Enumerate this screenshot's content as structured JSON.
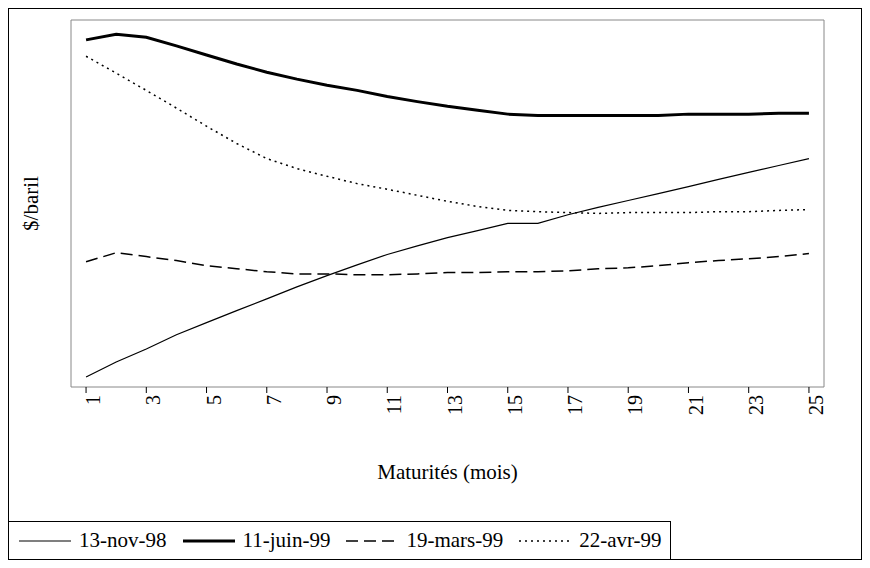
{
  "chart_data": {
    "type": "line",
    "x_label": "Maturités (mois)",
    "y_label": "$/baril",
    "x": [
      1,
      2,
      3,
      4,
      5,
      6,
      7,
      8,
      9,
      10,
      11,
      12,
      13,
      14,
      15,
      16,
      17,
      18,
      19,
      20,
      21,
      22,
      23,
      24,
      25
    ],
    "xlim": [
      0.5,
      25.5
    ],
    "xticks": [
      1,
      3,
      5,
      7,
      9,
      11,
      13,
      15,
      17,
      19,
      21,
      23,
      25
    ],
    "ylim": [
      11,
      19.5
    ],
    "tick_labels": "x",
    "grid": false,
    "legend": "bottom",
    "series": [
      {
        "name": "13-nov-98",
        "color": "#000000",
        "line_style": "solid",
        "values": [
          11.23,
          11.58,
          11.88,
          12.21,
          12.49,
          12.77,
          13.04,
          13.32,
          13.58,
          13.83,
          14.07,
          14.27,
          14.46,
          14.62,
          14.79,
          14.79,
          14.99,
          15.16,
          15.32,
          15.48,
          15.64,
          15.81,
          15.97,
          16.13,
          16.29
        ]
      },
      {
        "name": "11-juin-99",
        "color": "#000000",
        "line_style": "thick",
        "values": [
          19.04,
          19.17,
          19.1,
          18.9,
          18.69,
          18.48,
          18.29,
          18.13,
          17.99,
          17.87,
          17.73,
          17.61,
          17.5,
          17.41,
          17.32,
          17.29,
          17.29,
          17.29,
          17.29,
          17.29,
          17.32,
          17.32,
          17.32,
          17.34,
          17.34
        ]
      },
      {
        "name": "19-mars-99",
        "color": "#000000",
        "line_style": "dashed",
        "values": [
          13.9,
          14.11,
          14.02,
          13.93,
          13.81,
          13.74,
          13.67,
          13.62,
          13.62,
          13.6,
          13.6,
          13.62,
          13.65,
          13.65,
          13.67,
          13.67,
          13.69,
          13.74,
          13.76,
          13.81,
          13.88,
          13.93,
          13.97,
          14.02,
          14.09
        ]
      },
      {
        "name": "22-avr-99",
        "color": "#000000",
        "line_style": "dotted",
        "values": [
          18.66,
          18.27,
          17.87,
          17.46,
          17.04,
          16.64,
          16.29,
          16.06,
          15.88,
          15.71,
          15.58,
          15.44,
          15.3,
          15.18,
          15.09,
          15.06,
          15.04,
          15.02,
          15.04,
          15.04,
          15.04,
          15.06,
          15.06,
          15.09,
          15.11
        ]
      }
    ]
  }
}
